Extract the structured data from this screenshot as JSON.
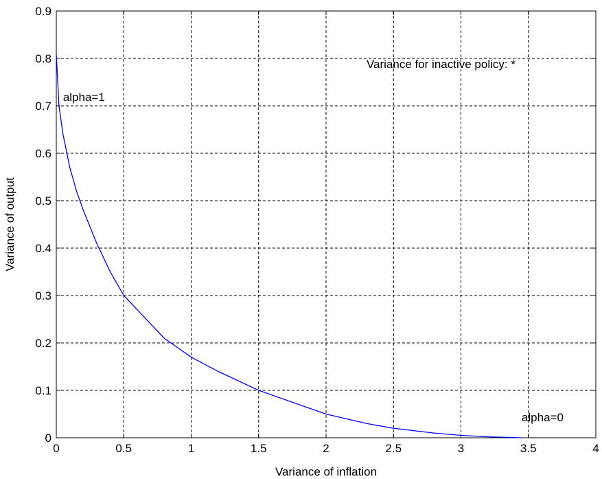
{
  "chart_data": {
    "type": "line",
    "title": "",
    "xlabel": "Variance of inflation",
    "ylabel": "Variance of output",
    "xlim": [
      0,
      4
    ],
    "ylim": [
      0,
      0.9
    ],
    "x_ticks": [
      "0",
      "0.5",
      "1",
      "1.5",
      "2",
      "2.5",
      "3",
      "3.5",
      "4"
    ],
    "y_ticks": [
      "0",
      "0.1",
      "0.2",
      "0.3",
      "0.4",
      "0.5",
      "0.6",
      "0.7",
      "0.8",
      "0.9"
    ],
    "grid": true,
    "grid_style": "dashed",
    "line_color": "#0000ff",
    "series": [
      {
        "x": [
          0,
          0.02,
          0.05,
          0.1,
          0.15,
          0.2,
          0.3,
          0.4,
          0.5,
          0.6,
          0.7,
          0.8,
          0.9,
          1.0,
          1.2,
          1.5,
          1.8,
          2.0,
          2.3,
          2.5,
          2.8,
          3.0,
          3.2,
          3.45
        ],
        "y": [
          0.81,
          0.7,
          0.64,
          0.57,
          0.52,
          0.48,
          0.41,
          0.35,
          0.3,
          0.27,
          0.24,
          0.21,
          0.19,
          0.17,
          0.14,
          0.1,
          0.07,
          0.05,
          0.03,
          0.02,
          0.01,
          0.005,
          0.002,
          0.0
        ]
      }
    ],
    "annotations": [
      {
        "text": "Variance for inactive policy: *",
        "x": 2.3,
        "y": 0.78
      },
      {
        "text": "alpha=1",
        "x": 0.05,
        "y": 0.71
      },
      {
        "text": "alpha=0",
        "x": 3.45,
        "y": 0.035
      }
    ]
  }
}
